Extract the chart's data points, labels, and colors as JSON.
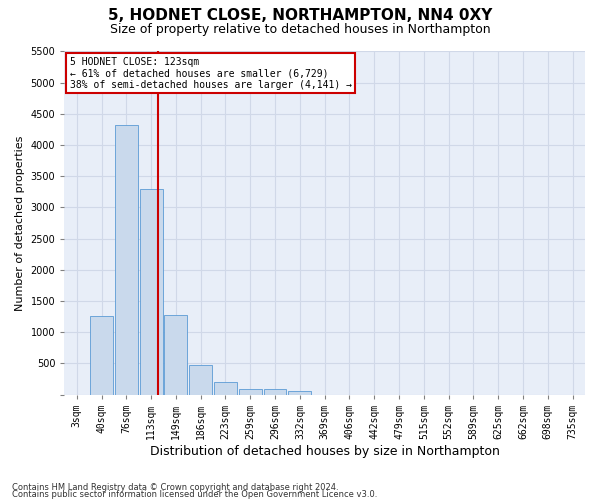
{
  "title": "5, HODNET CLOSE, NORTHAMPTON, NN4 0XY",
  "subtitle": "Size of property relative to detached houses in Northampton",
  "xlabel": "Distribution of detached houses by size in Northampton",
  "ylabel": "Number of detached properties",
  "footnote1": "Contains HM Land Registry data © Crown copyright and database right 2024.",
  "footnote2": "Contains public sector information licensed under the Open Government Licence v3.0.",
  "bin_labels": [
    "3sqm",
    "40sqm",
    "76sqm",
    "113sqm",
    "149sqm",
    "186sqm",
    "223sqm",
    "259sqm",
    "296sqm",
    "332sqm",
    "369sqm",
    "406sqm",
    "442sqm",
    "479sqm",
    "515sqm",
    "552sqm",
    "589sqm",
    "625sqm",
    "662sqm",
    "698sqm",
    "735sqm"
  ],
  "bar_values": [
    0,
    1260,
    4330,
    3300,
    1280,
    480,
    210,
    85,
    85,
    55,
    0,
    0,
    0,
    0,
    0,
    0,
    0,
    0,
    0,
    0,
    0
  ],
  "bar_color": "#c9d9ec",
  "bar_edge_color": "#5b9bd5",
  "vline_color": "#cc0000",
  "ylim": [
    0,
    5500
  ],
  "yticks": [
    0,
    500,
    1000,
    1500,
    2000,
    2500,
    3000,
    3500,
    4000,
    4500,
    5000,
    5500
  ],
  "annotation_line1": "5 HODNET CLOSE: 123sqm",
  "annotation_line2": "← 61% of detached houses are smaller (6,729)",
  "annotation_line3": "38% of semi-detached houses are larger (4,141) →",
  "annotation_box_color": "#ffffff",
  "annotation_border_color": "#cc0000",
  "grid_color": "#d0d8e8",
  "bg_color": "#e8eef8",
  "title_fontsize": 11,
  "subtitle_fontsize": 9,
  "ylabel_fontsize": 8,
  "xlabel_fontsize": 9,
  "tick_fontsize": 7,
  "annot_fontsize": 7,
  "footnote_fontsize": 6
}
